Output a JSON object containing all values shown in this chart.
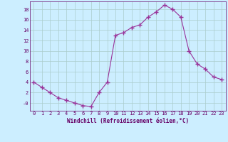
{
  "x": [
    0,
    1,
    2,
    3,
    4,
    5,
    6,
    7,
    8,
    9,
    10,
    11,
    12,
    13,
    14,
    15,
    16,
    17,
    18,
    19,
    20,
    21,
    22,
    23
  ],
  "y": [
    4,
    3,
    2,
    1,
    0.5,
    0,
    -0.5,
    -0.7,
    2,
    4,
    13,
    13.5,
    14.5,
    15,
    16.5,
    17.5,
    18.8,
    18,
    16.5,
    10,
    7.5,
    6.5,
    5,
    4.5
  ],
  "line_color": "#993399",
  "marker": "+",
  "marker_size": 4,
  "marker_linewidth": 1.0,
  "linewidth": 0.8,
  "xlabel": "Windchill (Refroidissement éolien,°C)",
  "xlim": [
    -0.5,
    23.5
  ],
  "ylim": [
    -1.5,
    19.5
  ],
  "yticks": [
    0,
    2,
    4,
    6,
    8,
    10,
    12,
    14,
    16,
    18
  ],
  "ytick_labels": [
    "-0",
    "2",
    "4",
    "6",
    "8",
    "10",
    "12",
    "14",
    "16",
    "18"
  ],
  "xticks": [
    0,
    1,
    2,
    3,
    4,
    5,
    6,
    7,
    8,
    9,
    10,
    11,
    12,
    13,
    14,
    15,
    16,
    17,
    18,
    19,
    20,
    21,
    22,
    23
  ],
  "bg_color": "#cceeff",
  "grid_color": "#aacccc",
  "label_color": "#660066",
  "tick_fontsize": 5.0,
  "xlabel_fontsize": 5.5,
  "font_family": "monospace"
}
